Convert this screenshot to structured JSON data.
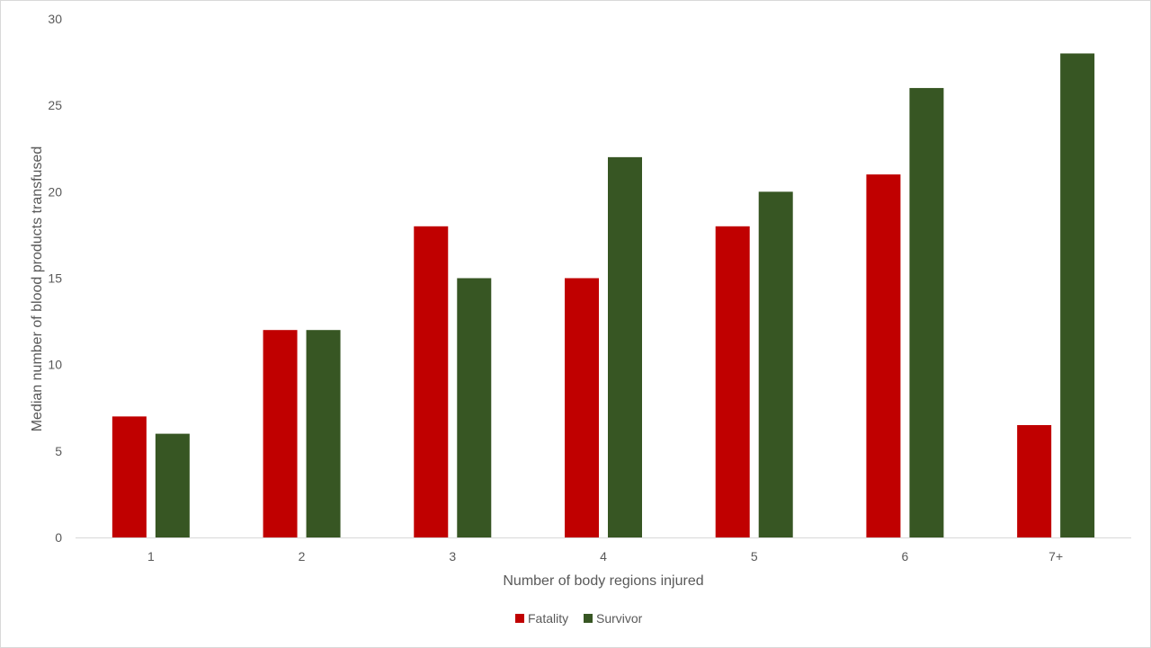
{
  "chart_data": {
    "type": "bar",
    "title": "",
    "xlabel": "Number of body regions injured",
    "ylabel": "Median number of blood products transfused",
    "categories": [
      "1",
      "2",
      "3",
      "4",
      "5",
      "6",
      "7+"
    ],
    "series": [
      {
        "name": "Fatality",
        "color": "#c00000",
        "values": [
          7,
          12,
          18,
          15,
          18,
          21,
          6.5
        ]
      },
      {
        "name": "Survivor",
        "color": "#375623",
        "values": [
          6,
          12,
          15,
          22,
          20,
          26,
          28
        ]
      }
    ],
    "ylim": [
      0,
      30
    ],
    "yticks": [
      "0",
      "5",
      "10",
      "15",
      "20",
      "25",
      "30"
    ],
    "grid": false,
    "legend_position": "bottom"
  }
}
